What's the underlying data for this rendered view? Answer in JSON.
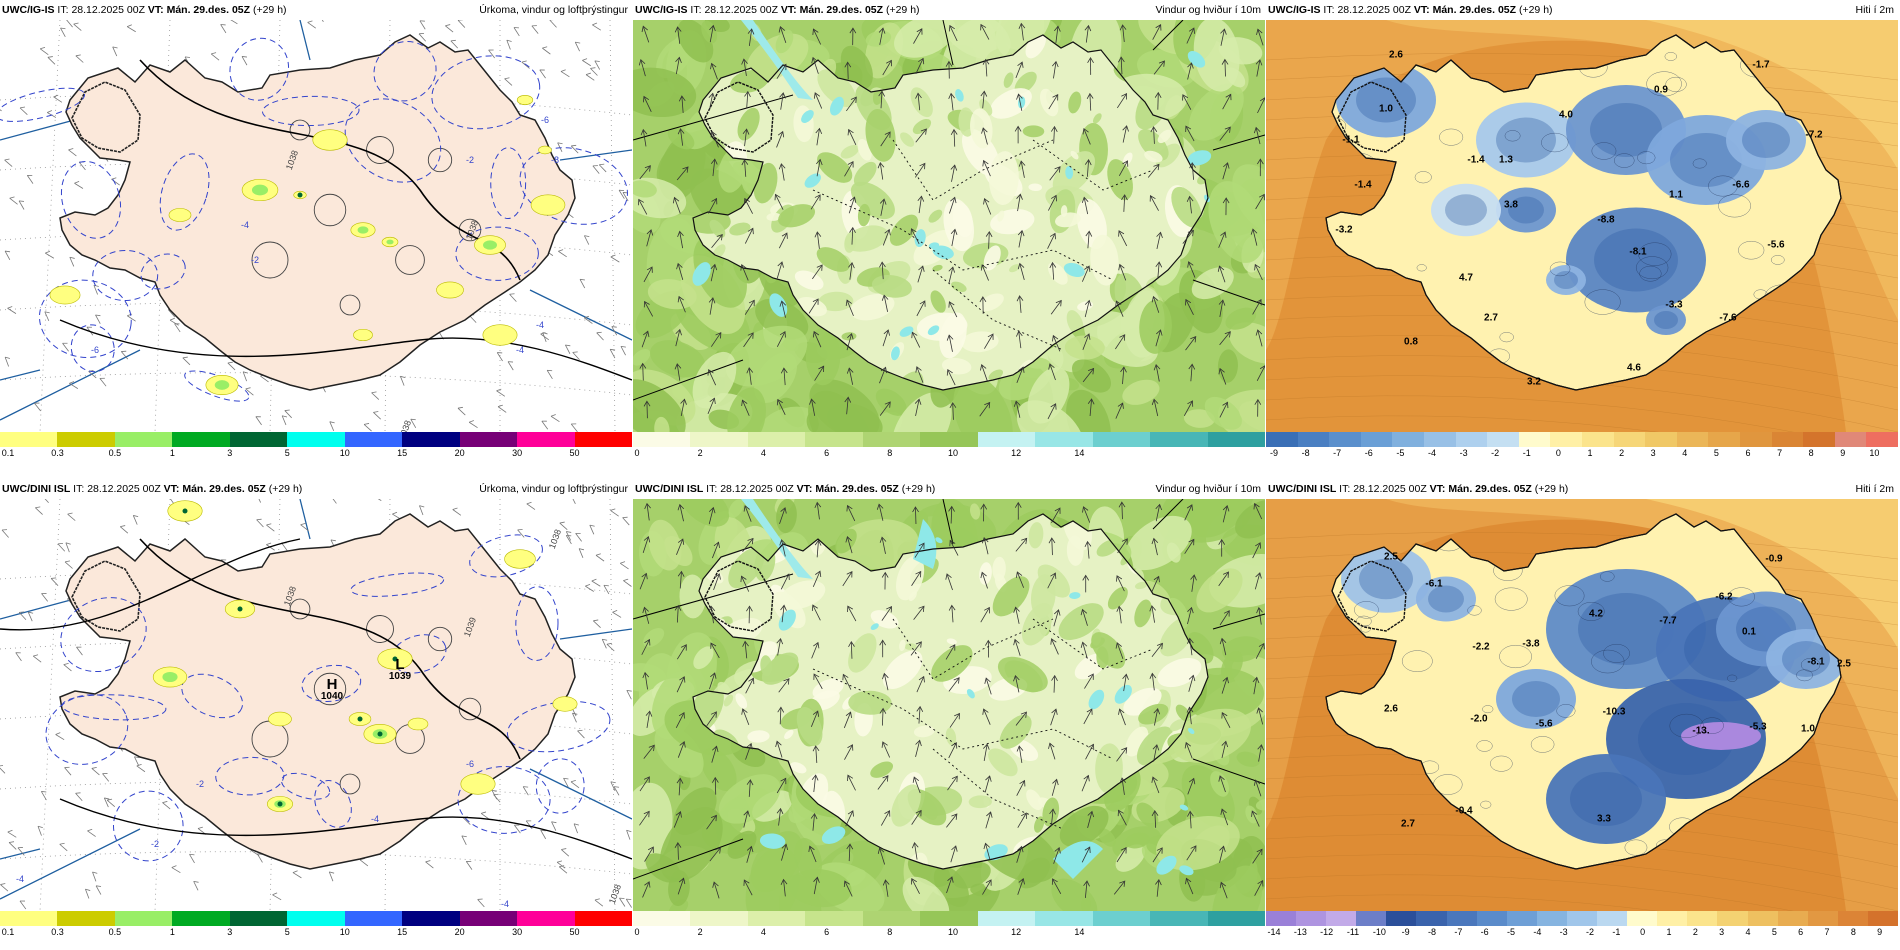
{
  "panels": [
    {
      "id": "igis-precip",
      "model": "UWC/IG-IS",
      "it_label": "IT:",
      "it_value": "28.12.2025 00Z",
      "vt_label": "VT:",
      "vt_value": "Mán. 29.des. 05Z",
      "lead": "(+29 h)",
      "title": "Úrkoma, vindur og loftþrýstingur",
      "colorbar": {
        "colors": [
          "#ffff80",
          "#cccc00",
          "#99ee66",
          "#00aa22",
          "#006633",
          "#00ffee",
          "#3366ff",
          "#000080",
          "#770077",
          "#ff0099",
          "#ff0000"
        ],
        "ticks": [
          "0.1",
          "0.3",
          "0.5",
          "1",
          "3",
          "5",
          "10",
          "15",
          "20",
          "30",
          "50"
        ]
      },
      "labels": [
        {
          "text": "1038"
        },
        {
          "text": "1038"
        },
        {
          "text": "1038"
        },
        {
          "text": "-6"
        },
        {
          "text": "-8"
        },
        {
          "text": "-4"
        },
        {
          "text": "-2"
        },
        {
          "text": "-6"
        },
        {
          "text": "-4"
        },
        {
          "text": "-2"
        },
        {
          "text": "-4"
        }
      ]
    },
    {
      "id": "igis-wind",
      "model": "UWC/IG-IS",
      "it_label": "IT:",
      "it_value": "28.12.2025 00Z",
      "vt_label": "VT:",
      "vt_value": "Mán. 29.des. 05Z",
      "lead": "(+29 h)",
      "title": "Vindur og hviður í 10m",
      "colorbar": {
        "colors": [
          "#fbfbe6",
          "#eef6c8",
          "#dcefaa",
          "#c6e48c",
          "#aed472",
          "#96c658",
          "#c4f2f2",
          "#98e6e6",
          "#6ccfcf",
          "#48b6b6",
          "#2ea0a0"
        ],
        "ticks": [
          "0",
          "2",
          "4",
          "6",
          "8",
          "10",
          "12",
          "14"
        ]
      }
    },
    {
      "id": "igis-temp",
      "model": "UWC/IG-IS",
      "it_label": "IT:",
      "it_value": "28.12.2025 00Z",
      "vt_label": "VT:",
      "vt_value": "Mán. 29.des. 05Z",
      "lead": "(+29 h)",
      "title": "Hiti í 2m",
      "colorbar": {
        "colors": [
          "#3a6fb6",
          "#4a7fc2",
          "#5a8fcc",
          "#6a9fd6",
          "#80b0de",
          "#98c0e6",
          "#aed0ee",
          "#c4dff2",
          "#fffbcc",
          "#fff0a6",
          "#fbe48c",
          "#f6d678",
          "#f0c866",
          "#ebb658",
          "#e6a64a",
          "#e0963e",
          "#da8534",
          "#d4742c",
          "#e08878",
          "#ee6e60"
        ],
        "ticks": [
          "-9",
          "-8",
          "-7",
          "-6",
          "-5",
          "-4",
          "-3",
          "-2",
          "-1",
          "0",
          "1",
          "2",
          "3",
          "4",
          "5",
          "6",
          "7",
          "8",
          "9",
          "10"
        ]
      },
      "labels": [
        {
          "text": "2.6"
        },
        {
          "text": "1.0"
        },
        {
          "text": "-1.1"
        },
        {
          "text": "-1.4"
        },
        {
          "text": "-3.2"
        },
        {
          "text": "1.3"
        },
        {
          "text": "3.8"
        },
        {
          "text": "-1.4"
        },
        {
          "text": "4.0"
        },
        {
          "text": "0.9"
        },
        {
          "text": "-1.7"
        },
        {
          "text": "-7.2"
        },
        {
          "text": "1.1"
        },
        {
          "text": "-6.6"
        },
        {
          "text": "-8.8"
        },
        {
          "text": "-8.1"
        },
        {
          "text": "-5.6"
        },
        {
          "text": "4.7"
        },
        {
          "text": "2.7"
        },
        {
          "text": "-3.3"
        },
        {
          "text": "-7.6"
        },
        {
          "text": "0.8"
        },
        {
          "text": "4.6"
        },
        {
          "text": "3.2"
        }
      ]
    },
    {
      "id": "dini-precip",
      "model": "UWC/DINI ISL",
      "it_label": "IT:",
      "it_value": "28.12.2025 00Z",
      "vt_label": "VT:",
      "vt_value": "Mán. 29.des. 05Z",
      "lead": "(+29 h)",
      "title": "Úrkoma, vindur og loftþrýstingur",
      "colorbar": {
        "colors": [
          "#ffff80",
          "#cccc00",
          "#99ee66",
          "#00aa22",
          "#006633",
          "#00ffee",
          "#3366ff",
          "#000080",
          "#770077",
          "#ff0099",
          "#ff0000"
        ],
        "ticks": [
          "0.1",
          "0.3",
          "0.5",
          "1",
          "3",
          "5",
          "10",
          "15",
          "20",
          "30",
          "50"
        ]
      },
      "labels": [
        {
          "text": "1038"
        },
        {
          "text": "1038"
        },
        {
          "text": "1038"
        },
        {
          "text": "1039"
        },
        {
          "text": "-4"
        },
        {
          "text": "-6"
        },
        {
          "text": "-2"
        },
        {
          "text": "-4"
        },
        {
          "text": "-2"
        },
        {
          "text": "-4"
        }
      ],
      "high": {
        "letter": "H",
        "value": "1040"
      },
      "low": {
        "letter": "L",
        "value": "1039"
      }
    },
    {
      "id": "dini-wind",
      "model": "UWC/DINI ISL",
      "it_label": "IT:",
      "it_value": "28.12.2025 00Z",
      "vt_label": "VT:",
      "vt_value": "Mán. 29.des. 05Z",
      "lead": "(+29 h)",
      "title": "Vindur og hviður í 10m",
      "colorbar": {
        "colors": [
          "#fbfbe6",
          "#eef6c8",
          "#dcefaa",
          "#c6e48c",
          "#aed472",
          "#96c658",
          "#c4f2f2",
          "#98e6e6",
          "#6ccfcf",
          "#48b6b6",
          "#2ea0a0"
        ],
        "ticks": [
          "0",
          "2",
          "4",
          "6",
          "8",
          "10",
          "12",
          "14"
        ]
      }
    },
    {
      "id": "dini-temp",
      "model": "UWC/DINI ISL",
      "it_label": "IT:",
      "it_value": "28.12.2025 00Z",
      "vt_label": "VT:",
      "vt_value": "Mán. 29.des. 05Z",
      "lead": "(+29 h)",
      "title": "Hiti í 2m",
      "colorbar": {
        "colors": [
          "#9a80d8",
          "#ae94e0",
          "#c2aae8",
          "#6c7ec8",
          "#2b4f9a",
          "#3a63ac",
          "#4a77bc",
          "#5a8bca",
          "#6e9fd6",
          "#86b4e0",
          "#a0c6ea",
          "#bad8f0",
          "#fffbcc",
          "#fff0a6",
          "#fbe48c",
          "#f4d272",
          "#eec060",
          "#e8ac50",
          "#e29842",
          "#dc8436",
          "#d4722c"
        ],
        "ticks": [
          "-14",
          "-13",
          "-12",
          "-11",
          "-10",
          "-9",
          "-8",
          "-7",
          "-6",
          "-5",
          "-4",
          "-3",
          "-2",
          "-1",
          "0",
          "1",
          "2",
          "3",
          "4",
          "5",
          "6",
          "7",
          "8",
          "9"
        ]
      },
      "labels": [
        {
          "text": "2.5"
        },
        {
          "text": "-6.1"
        },
        {
          "text": "-2.2"
        },
        {
          "text": "-3.8"
        },
        {
          "text": "4.2"
        },
        {
          "text": "-7.7"
        },
        {
          "text": "-6.2"
        },
        {
          "text": "-0.9"
        },
        {
          "text": "0.1"
        },
        {
          "text": "-8.1"
        },
        {
          "text": "2.5"
        },
        {
          "text": "2.6"
        },
        {
          "text": "-2.0"
        },
        {
          "text": "-5.6"
        },
        {
          "text": "-10.3"
        },
        {
          "text": "-13."
        },
        {
          "text": "-5.3"
        },
        {
          "text": "1.0"
        },
        {
          "text": "-0.4"
        },
        {
          "text": "2.7"
        },
        {
          "text": "3.3"
        }
      ]
    }
  ]
}
